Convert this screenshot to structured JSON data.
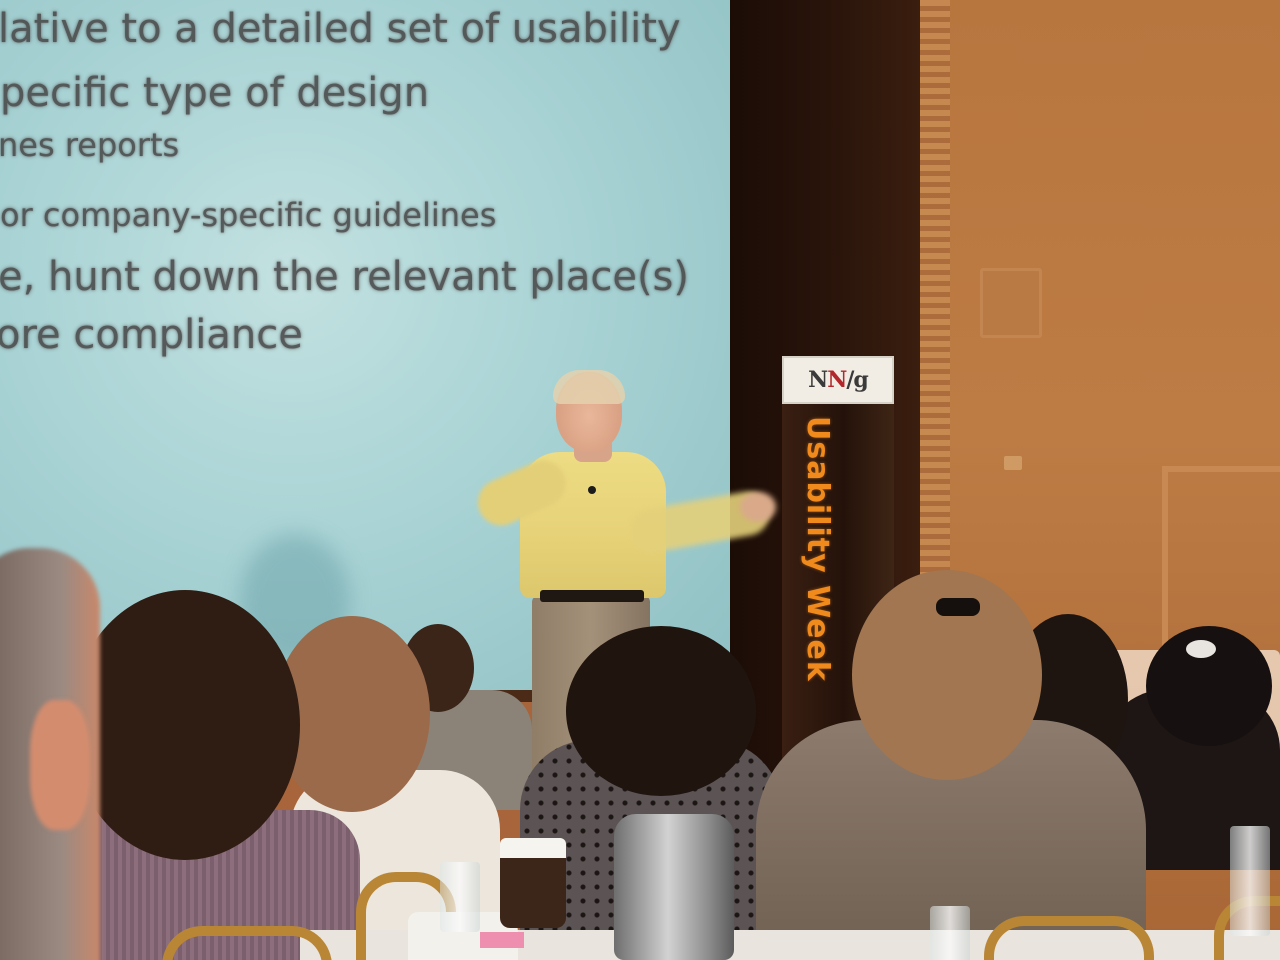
{
  "slide": {
    "lines": [
      "lative to a detailed set of usability",
      "pecific type of design",
      "nes reports",
      "or company-specific guidelines",
      "e, hunt down the relevant place(s)",
      "ore compliance"
    ]
  },
  "banner": {
    "logo_left": "N",
    "logo_mid": "N",
    "logo_right": "/g",
    "text": "Usability Week"
  },
  "colors": {
    "banner_text": "#f08a1c",
    "logo_red": "#b3262b",
    "screen": "#a9d3d5"
  }
}
